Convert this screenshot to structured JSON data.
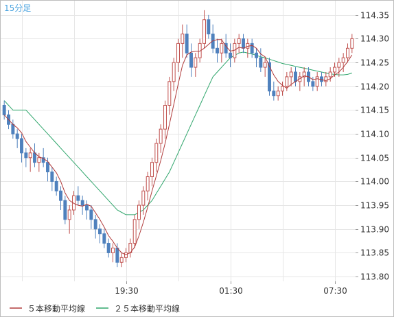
{
  "chart_data": {
    "type": "candlestick",
    "title": "15分足",
    "xlabel": "",
    "ylabel": "",
    "ylim": [
      113.79,
      114.38
    ],
    "yticks": [
      "114.35",
      "114.30",
      "114.25",
      "114.20",
      "114.15",
      "114.10",
      "114.05",
      "114.00",
      "113.95",
      "113.90",
      "113.85",
      "113.80"
    ],
    "ytick_values": [
      114.35,
      114.3,
      114.25,
      114.2,
      114.15,
      114.1,
      114.05,
      114.0,
      113.95,
      113.9,
      113.85,
      113.8
    ],
    "xticks": [
      {
        "label": "19:30",
        "index": 28
      },
      {
        "label": "01:30",
        "index": 52
      },
      {
        "label": "07:30",
        "index": 76
      }
    ],
    "grid": true,
    "legend_position": "bottom-left",
    "colors": {
      "up": "#c0504d",
      "down": "#4f81bd",
      "ma5": "#b03a3a",
      "ma25": "#2ea56b",
      "title": "#4aa3df"
    },
    "legend": [
      {
        "label": "５本移動平均線",
        "color": "#b03a3a"
      },
      {
        "label": "２５本移動平均線",
        "color": "#2ea56b"
      }
    ],
    "candles": [
      [
        114.16,
        114.17,
        114.13,
        114.14
      ],
      [
        114.14,
        114.15,
        114.11,
        114.12
      ],
      [
        114.12,
        114.13,
        114.09,
        114.1
      ],
      [
        114.1,
        114.11,
        114.07,
        114.09
      ],
      [
        114.09,
        114.1,
        114.04,
        114.06
      ],
      [
        114.06,
        114.07,
        114.03,
        114.05
      ],
      [
        114.05,
        114.07,
        114.02,
        114.06
      ],
      [
        114.06,
        114.08,
        114.03,
        114.04
      ],
      [
        114.04,
        114.06,
        114.02,
        114.05
      ],
      [
        114.05,
        114.07,
        114.03,
        114.04
      ],
      [
        114.04,
        114.05,
        114.0,
        114.02
      ],
      [
        114.02,
        114.03,
        113.98,
        114.0
      ],
      [
        114.0,
        114.01,
        113.97,
        113.98
      ],
      [
        113.98,
        113.99,
        113.94,
        113.96
      ],
      [
        113.96,
        113.97,
        113.91,
        113.92
      ],
      [
        113.92,
        113.95,
        113.89,
        113.94
      ],
      [
        113.94,
        113.98,
        113.93,
        113.97
      ],
      [
        113.97,
        113.99,
        113.95,
        113.96
      ],
      [
        113.96,
        113.97,
        113.93,
        113.95
      ],
      [
        113.95,
        113.96,
        113.92,
        113.94
      ],
      [
        113.94,
        113.95,
        113.9,
        113.92
      ],
      [
        113.92,
        113.93,
        113.88,
        113.9
      ],
      [
        113.9,
        113.91,
        113.87,
        113.89
      ],
      [
        113.89,
        113.9,
        113.86,
        113.87
      ],
      [
        113.87,
        113.88,
        113.84,
        113.85
      ],
      [
        113.85,
        113.87,
        113.83,
        113.86
      ],
      [
        113.86,
        113.87,
        113.82,
        113.83
      ],
      [
        113.83,
        113.85,
        113.82,
        113.84
      ],
      [
        113.84,
        113.86,
        113.83,
        113.85
      ],
      [
        113.85,
        113.88,
        113.84,
        113.87
      ],
      [
        113.87,
        113.93,
        113.86,
        113.92
      ],
      [
        113.92,
        113.96,
        113.9,
        113.95
      ],
      [
        113.95,
        113.99,
        113.93,
        113.98
      ],
      [
        113.98,
        114.02,
        113.96,
        114.01
      ],
      [
        114.01,
        114.05,
        113.99,
        114.04
      ],
      [
        114.04,
        114.09,
        114.02,
        114.08
      ],
      [
        114.08,
        114.12,
        114.06,
        114.11
      ],
      [
        114.11,
        114.17,
        114.09,
        114.16
      ],
      [
        114.16,
        114.22,
        114.14,
        114.21
      ],
      [
        114.21,
        114.26,
        114.19,
        114.25
      ],
      [
        114.25,
        114.3,
        114.23,
        114.29
      ],
      [
        114.29,
        114.33,
        114.26,
        114.31
      ],
      [
        114.31,
        114.33,
        114.26,
        114.27
      ],
      [
        114.27,
        114.29,
        114.22,
        114.24
      ],
      [
        114.24,
        114.27,
        114.22,
        114.26
      ],
      [
        114.26,
        114.3,
        114.25,
        114.29
      ],
      [
        114.29,
        114.36,
        114.28,
        114.34
      ],
      [
        114.34,
        114.35,
        114.3,
        114.31
      ],
      [
        114.31,
        114.33,
        114.27,
        114.28
      ],
      [
        114.28,
        114.3,
        114.25,
        114.27
      ],
      [
        114.27,
        114.3,
        114.25,
        114.29
      ],
      [
        114.29,
        114.31,
        114.26,
        114.27
      ],
      [
        114.27,
        114.29,
        114.24,
        114.26
      ],
      [
        114.26,
        114.3,
        114.25,
        114.29
      ],
      [
        114.29,
        114.31,
        114.27,
        114.3
      ],
      [
        114.3,
        114.31,
        114.27,
        114.28
      ],
      [
        114.28,
        114.3,
        114.26,
        114.29
      ],
      [
        114.29,
        114.3,
        114.26,
        114.27
      ],
      [
        114.27,
        114.28,
        114.24,
        114.26
      ],
      [
        114.26,
        114.28,
        114.23,
        114.24
      ],
      [
        114.24,
        114.26,
        114.22,
        114.25
      ],
      [
        114.25,
        114.26,
        114.18,
        114.19
      ],
      [
        114.19,
        114.21,
        114.17,
        114.18
      ],
      [
        114.18,
        114.2,
        114.17,
        114.19
      ],
      [
        114.19,
        114.21,
        114.18,
        114.2
      ],
      [
        114.2,
        114.23,
        114.19,
        114.22
      ],
      [
        114.22,
        114.24,
        114.2,
        114.23
      ],
      [
        114.23,
        114.24,
        114.2,
        114.21
      ],
      [
        114.21,
        114.23,
        114.19,
        114.22
      ],
      [
        114.22,
        114.24,
        114.2,
        114.23
      ],
      [
        114.23,
        114.24,
        114.2,
        114.21
      ],
      [
        114.21,
        114.22,
        114.19,
        114.2
      ],
      [
        114.2,
        114.23,
        114.19,
        114.22
      ],
      [
        114.22,
        114.23,
        114.2,
        114.21
      ],
      [
        114.21,
        114.23,
        114.2,
        114.22
      ],
      [
        114.22,
        114.24,
        114.21,
        114.23
      ],
      [
        114.23,
        114.25,
        114.22,
        114.24
      ],
      [
        114.24,
        114.26,
        114.22,
        114.25
      ],
      [
        114.25,
        114.27,
        114.23,
        114.26
      ],
      [
        114.26,
        114.29,
        114.25,
        114.28
      ],
      [
        114.28,
        114.31,
        114.27,
        114.3
      ]
    ],
    "ma25": [
      114.17,
      114.16,
      114.15,
      114.15,
      114.15,
      114.15,
      114.14,
      114.13,
      114.12,
      114.11,
      114.1,
      114.09,
      114.08,
      114.07,
      114.06,
      114.05,
      114.04,
      114.03,
      114.02,
      114.01,
      114.0,
      113.99,
      113.98,
      113.97,
      113.96,
      113.95,
      113.94,
      113.935,
      113.93,
      113.93,
      113.93,
      113.935,
      113.94,
      113.95,
      113.96,
      113.975,
      113.99,
      114.005,
      114.02,
      114.04,
      114.06,
      114.08,
      114.1,
      114.12,
      114.14,
      114.16,
      114.18,
      114.2,
      114.22,
      114.23,
      114.24,
      114.25,
      114.26,
      114.265,
      114.27,
      114.272,
      114.27,
      114.268,
      114.265,
      114.262,
      114.26,
      114.257,
      114.254,
      114.251,
      114.248,
      114.246,
      114.244,
      114.242,
      114.24,
      114.238,
      114.236,
      114.234,
      114.232,
      114.23,
      114.228,
      114.226,
      114.225,
      114.224,
      114.224,
      114.225,
      114.228
    ]
  }
}
